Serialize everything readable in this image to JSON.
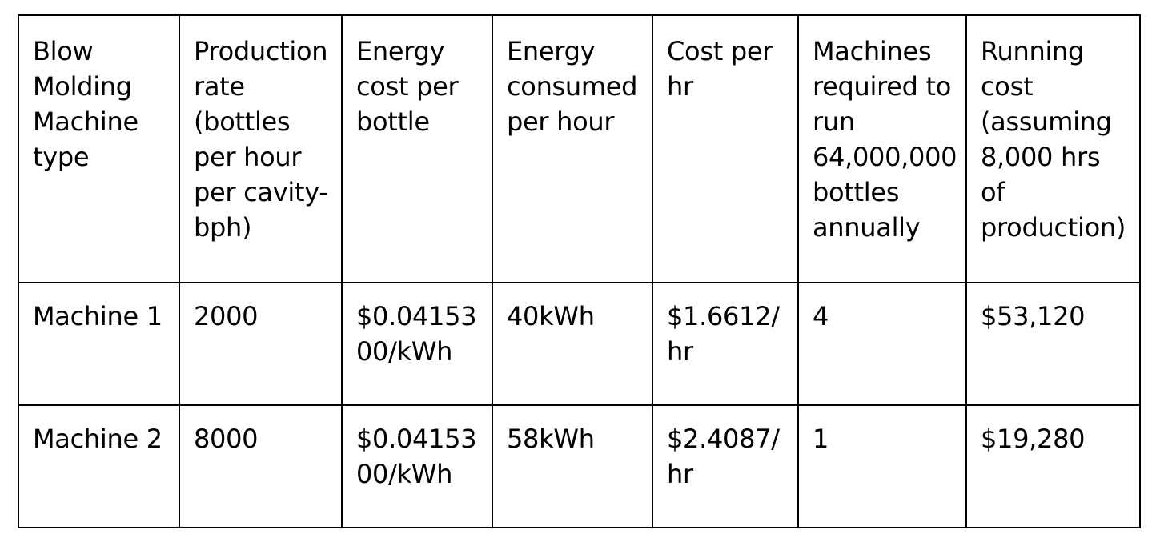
{
  "table": {
    "headers": [
      "Blow\nMolding\nMachine\ntype",
      "Production\nrate\n(bottles\nper hour\nper cavity-\nbph)",
      "Energy\ncost per\nbottle",
      "Energy\nconsumed\nper hour",
      "Cost per\nhr",
      "Machines\nrequired to\nrun\n64,000,000\nbottles\nannually",
      "Running\ncost\n(assuming\n8,000 hrs of\nproduction)"
    ],
    "rows": [
      [
        "Machine 1",
        "2000",
        "$0.04153\n00/kWh",
        "40kWh",
        "$1.6612/\nhr",
        "4",
        "$53,120"
      ],
      [
        "Machine 2",
        "8000",
        "$0.04153\n00/kWh",
        "58kWh",
        " $2.4087/\nhr",
        "1",
        "$19,280"
      ]
    ]
  }
}
